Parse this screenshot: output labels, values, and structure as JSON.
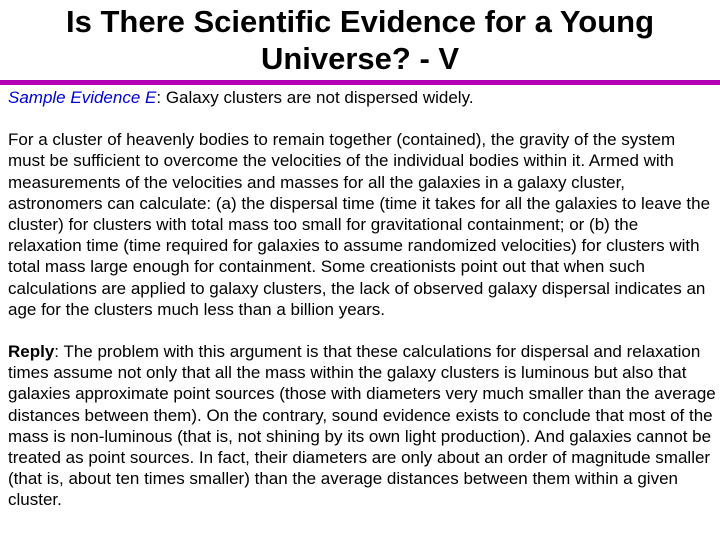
{
  "title": {
    "line1": "Is There Scientific Evidence for a Young",
    "line2": "Universe? - V"
  },
  "accent_rule_color": "#b400b4",
  "evidence": {
    "label": "Sample Evidence E",
    "label_color": "#0000cc",
    "separator": ": ",
    "claim": "Galaxy clusters are not dispersed widely."
  },
  "paragraph": "For a cluster of heavenly bodies to remain together (contained), the gravity of the system must be sufficient to overcome the velocities of the individual bodies within it. Armed with measurements of the velocities and masses for all the galaxies in a galaxy cluster, astronomers can calculate: (a) the dispersal time (time it takes for all the galaxies to leave the cluster) for clusters with total mass too small for gravitational containment; or (b) the relaxation time (time required for galaxies to assume randomized velocities) for clusters with total mass large enough for containment. Some creationists point out that when such calculations are applied to galaxy clusters, the lack of observed galaxy dispersal indicates an age for the clusters much less than a billion years.",
  "reply": {
    "label": "Reply",
    "separator": ": ",
    "text": "The problem with this argument is that these calculations for dispersal and relaxation times assume not only that all the mass within the galaxy clusters is luminous but also that galaxies approximate point sources (those with diameters very much smaller than the average distances between them). On the contrary, sound evidence exists to conclude that most of the mass is non-luminous (that is, not shining by its own light production). And galaxies cannot be treated as point sources. In fact, their diameters are only about an order of magnitude smaller (that is, about ten times smaller) than the average distances between them within a given cluster."
  }
}
